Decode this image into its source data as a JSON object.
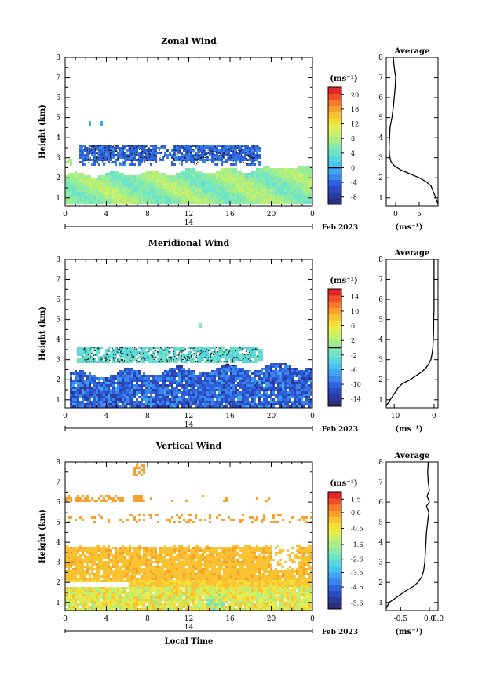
{
  "chart_data": [
    {
      "type": "heatmap",
      "title": "Zonal Wind",
      "ylabel": "Height (km)",
      "xlabel": "",
      "x_ticks": [
        "0",
        "4",
        "8",
        "12",
        "16",
        "20",
        "0"
      ],
      "xlim": [
        0,
        24
      ],
      "y_ticks": [
        "1",
        "2",
        "3",
        "4",
        "5",
        "6",
        "7",
        "8"
      ],
      "ylim": [
        0.6,
        8
      ],
      "date_label": "14",
      "month_label": "Feb 2023",
      "colorbar": {
        "unit": "(ms⁻¹)",
        "ticks": [
          "20",
          "16",
          "12",
          "8",
          "4",
          "0",
          "-4",
          "-8"
        ],
        "range": [
          -10,
          22
        ],
        "zero_line": 0
      },
      "average": {
        "title": "Average",
        "xlabel": "(ms⁻¹)",
        "x_ticks": [
          "0",
          "5"
        ],
        "xlim": [
          -2,
          9
        ],
        "profile": [
          [
            0.7,
            9
          ],
          [
            1.0,
            8.5
          ],
          [
            1.3,
            8
          ],
          [
            1.6,
            7.5
          ],
          [
            1.8,
            6.5
          ],
          [
            2.0,
            5
          ],
          [
            2.2,
            3
          ],
          [
            2.4,
            1
          ],
          [
            2.6,
            -0.3
          ],
          [
            2.8,
            -1
          ],
          [
            3.1,
            -1.3
          ],
          [
            3.5,
            -1.4
          ],
          [
            4.0,
            -1.3
          ],
          [
            4.5,
            -1.2
          ],
          [
            5.0,
            -0.8
          ],
          [
            5.5,
            -0.5
          ],
          [
            6.0,
            -0.3
          ],
          [
            6.5,
            -0.1
          ],
          [
            7.0,
            0.0
          ],
          [
            7.5,
            -0.3
          ],
          [
            8.0,
            -0.5
          ]
        ]
      }
    },
    {
      "type": "heatmap",
      "title": "Meridional Wind",
      "ylabel": "Height (km)",
      "xlabel": "",
      "x_ticks": [
        "0",
        "4",
        "8",
        "12",
        "16",
        "20",
        "0"
      ],
      "xlim": [
        0,
        24
      ],
      "y_ticks": [
        "1",
        "2",
        "3",
        "4",
        "5",
        "6",
        "7",
        "8"
      ],
      "ylim": [
        0.6,
        8
      ],
      "date_label": "14",
      "month_label": "Feb 2023",
      "colorbar": {
        "unit": "(ms⁻¹)",
        "ticks": [
          "14",
          "10",
          "6",
          "2",
          "-2",
          "-6",
          "-10",
          "-14"
        ],
        "range": [
          -16,
          16
        ],
        "zero_line": 0
      },
      "average": {
        "title": "Average",
        "xlabel": "(ms⁻¹)",
        "x_ticks": [
          "-10",
          "0"
        ],
        "xlim": [
          -12,
          1
        ],
        "profile": [
          [
            0.7,
            -12
          ],
          [
            1.0,
            -11
          ],
          [
            1.3,
            -10
          ],
          [
            1.6,
            -9
          ],
          [
            1.8,
            -8
          ],
          [
            2.0,
            -6
          ],
          [
            2.2,
            -4.5
          ],
          [
            2.4,
            -3
          ],
          [
            2.6,
            -2
          ],
          [
            2.8,
            -1.3
          ],
          [
            3.0,
            -0.8
          ],
          [
            3.3,
            -0.5
          ],
          [
            3.6,
            -0.3
          ],
          [
            4.0,
            -0.2
          ],
          [
            4.5,
            -0.1
          ],
          [
            5.0,
            -0.1
          ],
          [
            5.5,
            0.0
          ],
          [
            6.0,
            0.0
          ],
          [
            7.0,
            0.0
          ],
          [
            8.0,
            0.0
          ]
        ]
      }
    },
    {
      "type": "heatmap",
      "title": "Vertical Wind",
      "ylabel": "Height (km)",
      "xlabel": "Local Time",
      "x_ticks": [
        "0",
        "4",
        "8",
        "12",
        "16",
        "20",
        "0"
      ],
      "xlim": [
        0,
        24
      ],
      "y_ticks": [
        "1",
        "2",
        "3",
        "4",
        "5",
        "6",
        "7",
        "8"
      ],
      "ylim": [
        0.6,
        8
      ],
      "date_label": "14",
      "month_label": "Feb 2023",
      "colorbar": {
        "unit": "(ms⁻¹)",
        "ticks": [
          "1.5",
          "0.6",
          "-0.5",
          "-1.6",
          "-2.6",
          "-3.5",
          "-4.5",
          "-5.6"
        ],
        "range": [
          -6,
          2
        ],
        "zero_line": null
      },
      "average": {
        "title": "Average",
        "xlabel": "(ms⁻¹)",
        "x_ticks": [
          "-0.5",
          "0.0",
          "0.0"
        ],
        "xlim": [
          -0.75,
          0.15
        ],
        "profile": [
          [
            0.7,
            -0.75
          ],
          [
            1.0,
            -0.7
          ],
          [
            1.3,
            -0.55
          ],
          [
            1.6,
            -0.4
          ],
          [
            1.8,
            -0.28
          ],
          [
            2.0,
            -0.2
          ],
          [
            2.3,
            -0.13
          ],
          [
            2.6,
            -0.1
          ],
          [
            3.0,
            -0.08
          ],
          [
            3.5,
            -0.07
          ],
          [
            4.0,
            -0.06
          ],
          [
            4.5,
            -0.05
          ],
          [
            5.0,
            -0.03
          ],
          [
            5.5,
            -0.01
          ],
          [
            5.8,
            -0.05
          ],
          [
            6.0,
            0.0
          ],
          [
            6.3,
            -0.04
          ],
          [
            6.6,
            0.0
          ],
          [
            7.0,
            -0.02
          ],
          [
            7.5,
            -0.03
          ],
          [
            8.0,
            -0.02
          ]
        ]
      }
    }
  ]
}
